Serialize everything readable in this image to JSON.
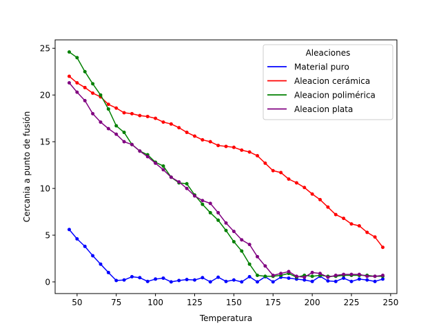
{
  "chart_data": {
    "type": "line",
    "title": "",
    "xlabel": "Temperatura",
    "ylabel": "Cercania a punto de fusión",
    "xlim": [
      36,
      254
    ],
    "ylim": [
      -1.25,
      25.9
    ],
    "xticks": [
      50,
      75,
      100,
      125,
      150,
      175,
      200,
      225,
      250
    ],
    "yticks": [
      0,
      5,
      10,
      15,
      20,
      25
    ],
    "grid": false,
    "legend": {
      "title": "Aleaciones",
      "placement": "top-right"
    },
    "x": [
      45,
      50,
      55,
      60,
      65,
      70,
      75,
      80,
      85,
      90,
      95,
      100,
      105,
      110,
      115,
      120,
      125,
      130,
      135,
      140,
      145,
      150,
      155,
      160,
      165,
      170,
      175,
      180,
      185,
      190,
      195,
      200,
      205,
      210,
      215,
      220,
      225,
      230,
      235,
      240,
      245
    ],
    "series": [
      {
        "name": "Material puro",
        "color": "#0000ff",
        "values": [
          5.6,
          4.6,
          3.8,
          2.8,
          1.9,
          1.0,
          0.15,
          0.2,
          0.55,
          0.45,
          0.05,
          0.3,
          0.4,
          0.0,
          0.15,
          0.25,
          0.2,
          0.45,
          0.0,
          0.5,
          0.05,
          0.2,
          0.0,
          0.55,
          0.0,
          0.55,
          0.0,
          0.5,
          0.4,
          0.3,
          0.2,
          0.05,
          0.6,
          0.1,
          0.05,
          0.4,
          0.05,
          0.3,
          0.2,
          0.05,
          0.3
        ]
      },
      {
        "name": "Aleacion cerámica",
        "color": "#ff0000",
        "values": [
          22.0,
          21.3,
          20.8,
          20.2,
          19.8,
          19.0,
          18.6,
          18.1,
          18.0,
          17.8,
          17.7,
          17.5,
          17.1,
          16.9,
          16.5,
          16.0,
          15.6,
          15.2,
          15.0,
          14.6,
          14.5,
          14.4,
          14.1,
          13.9,
          13.5,
          12.7,
          11.9,
          11.7,
          11.0,
          10.6,
          10.1,
          9.4,
          8.8,
          8.0,
          7.2,
          6.8,
          6.2,
          6.0,
          5.3,
          4.8,
          3.7
        ]
      },
      {
        "name": "Aleacion polimérica",
        "color": "#008000",
        "values": [
          24.6,
          24.0,
          22.5,
          21.2,
          20.0,
          18.5,
          16.7,
          16.0,
          14.7,
          14.0,
          13.6,
          12.8,
          12.4,
          11.2,
          10.6,
          10.5,
          9.3,
          8.3,
          7.4,
          6.6,
          5.5,
          4.3,
          3.3,
          1.9,
          0.7,
          0.6,
          0.6,
          0.7,
          0.9,
          0.5,
          0.7,
          0.6,
          0.7,
          0.6,
          0.6,
          0.7,
          0.7,
          0.7,
          0.7,
          0.6,
          0.6
        ]
      },
      {
        "name": "Aleacion plata",
        "color": "#800080",
        "values": [
          21.3,
          20.3,
          19.4,
          18.0,
          17.1,
          16.4,
          15.8,
          15.0,
          14.7,
          14.0,
          13.4,
          12.7,
          12.0,
          11.2,
          10.7,
          10.0,
          9.2,
          8.7,
          8.4,
          7.4,
          6.3,
          5.4,
          4.5,
          4.0,
          2.7,
          1.7,
          0.7,
          0.9,
          1.1,
          0.6,
          0.5,
          1.0,
          0.9,
          0.5,
          0.7,
          0.8,
          0.8,
          0.8,
          0.6,
          0.6,
          0.7
        ]
      }
    ]
  }
}
